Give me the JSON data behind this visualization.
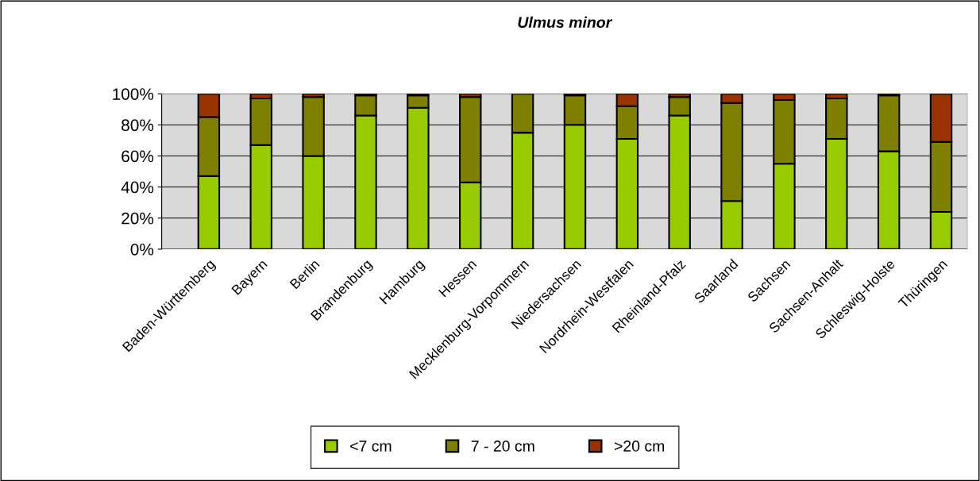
{
  "chart_data": {
    "type": "bar",
    "title": "Ulmus minor",
    "stacked": true,
    "categories": [
      "Baden-Württemberg",
      "Bayern",
      "Berlin",
      "Brandenburg",
      "Hamburg",
      "Hessen",
      "Mecklenburg-Vorpommern",
      "Niedersachsen",
      "Nordrhein-Westfalen",
      "Rheinland-Pfalz",
      "Saarland",
      "Sachsen",
      "Sachsen-Anhalt",
      "Schleswig-Holste",
      "Thüringen"
    ],
    "series": [
      {
        "name": "<7 cm",
        "color": "#99cc00",
        "values": [
          47,
          67,
          60,
          86,
          91,
          43,
          75,
          80,
          71,
          86,
          31,
          55,
          71,
          63,
          24
        ]
      },
      {
        "name": "7 - 20 cm",
        "color": "#808000",
        "values": [
          38,
          30,
          38,
          13,
          8,
          55,
          25,
          19,
          21,
          12,
          63,
          41,
          26,
          36,
          45
        ]
      },
      {
        "name": ">20 cm",
        "color": "#993300",
        "values": [
          15,
          3,
          2,
          1,
          1,
          2,
          0,
          1,
          8,
          2,
          6,
          4,
          3,
          1,
          31
        ]
      }
    ],
    "ylim": [
      0,
      100
    ],
    "yticks": [
      {
        "value": 0,
        "label": "0%"
      },
      {
        "value": 20,
        "label": "20%"
      },
      {
        "value": 40,
        "label": "40%"
      },
      {
        "value": 60,
        "label": "60%"
      },
      {
        "value": 80,
        "label": "80%"
      },
      {
        "value": 100,
        "label": "100%"
      }
    ],
    "grid": "y",
    "legend": "bottom"
  }
}
